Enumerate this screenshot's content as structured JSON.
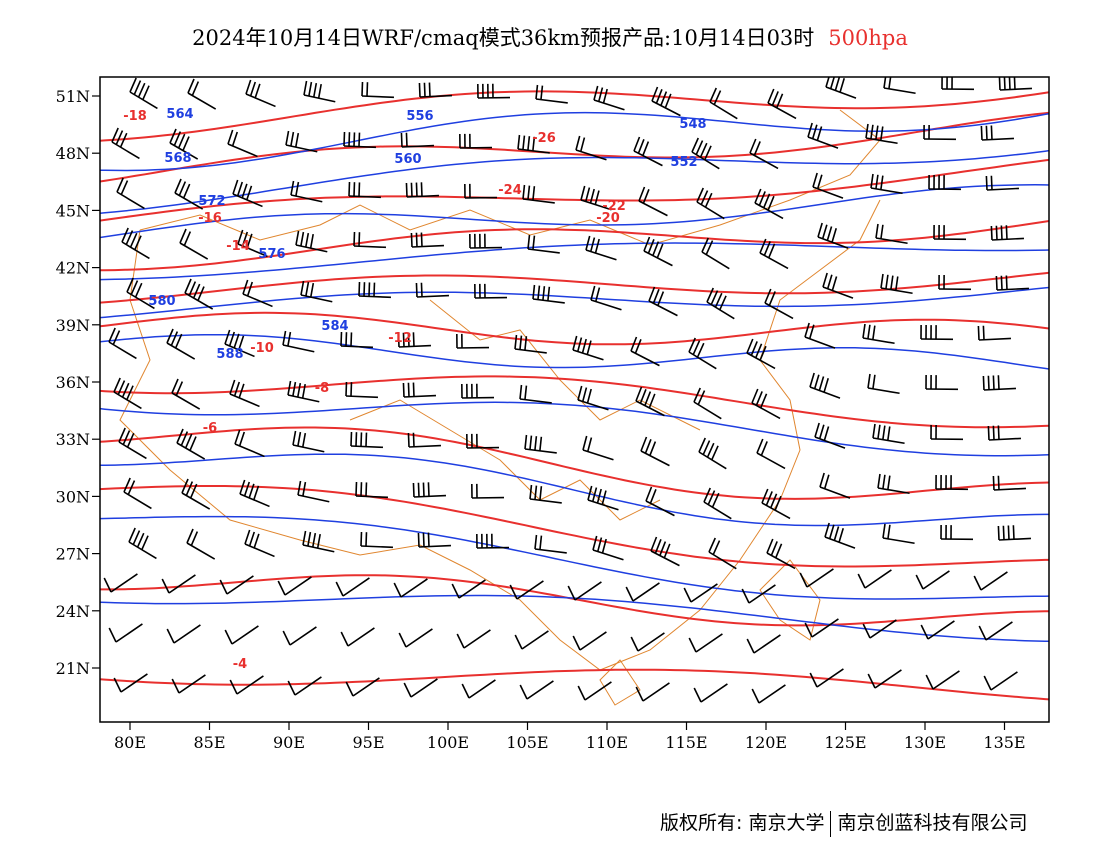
{
  "title": {
    "main": "2024年10月14日WRF/cmaq模式36km预报产品:10月14日03时",
    "level": "500hpa"
  },
  "map": {
    "lon_ticks": [
      "80E",
      "85E",
      "90E",
      "95E",
      "100E",
      "105E",
      "110E",
      "115E",
      "120E",
      "125E",
      "130E",
      "135E"
    ],
    "lat_ticks": [
      "51N",
      "48N",
      "45N",
      "42N",
      "39N",
      "36N",
      "33N",
      "30N",
      "27N",
      "24N",
      "21N"
    ],
    "geopotential_labels": [
      "564",
      "568",
      "572",
      "576",
      "580",
      "584",
      "588",
      "556",
      "560",
      "552",
      "548"
    ],
    "temperature_labels": [
      "-18",
      "-16",
      "-14",
      "-12",
      "-10",
      "-8",
      "-6",
      "-4",
      "-20",
      "-22",
      "-24",
      "-26"
    ],
    "colors": {
      "geopotential": "#1f3fe0",
      "temperature": "#e8302e",
      "boundary": "#e0862f",
      "wind": "#000000"
    }
  },
  "footer": {
    "copyright": "版权所有: 南京大学",
    "company": "南京创蓝科技有限公司"
  }
}
